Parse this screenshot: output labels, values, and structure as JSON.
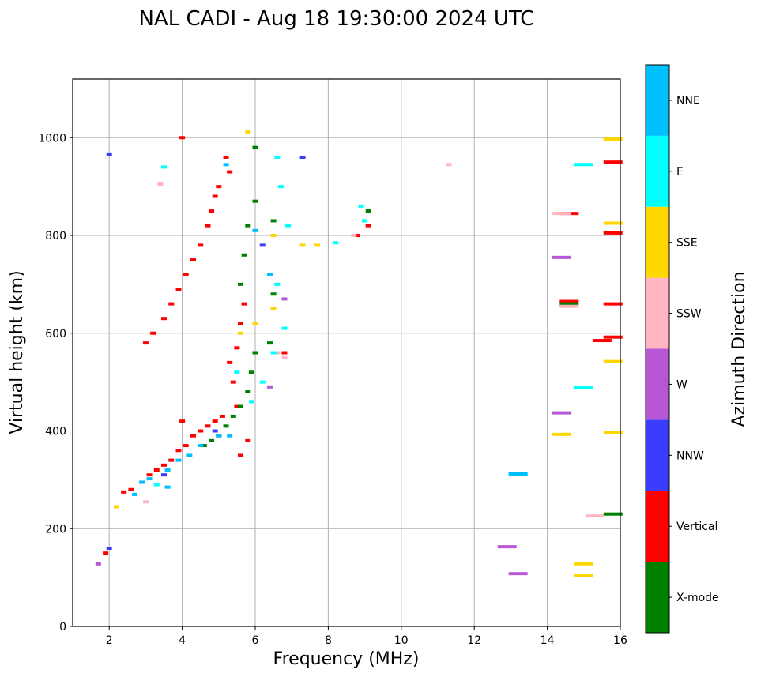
{
  "chart_data": {
    "type": "scatter",
    "title": "NAL CADI - Aug 18 19:30:00 2024 UTC",
    "xlabel": "Frequency (MHz)",
    "ylabel": "Virtual height (km)",
    "xlim": [
      1,
      16
    ],
    "ylim": [
      0,
      1120
    ],
    "xticks": [
      2,
      4,
      6,
      8,
      10,
      12,
      14,
      16
    ],
    "yticks": [
      0,
      200,
      400,
      600,
      800,
      1000
    ],
    "grid": true,
    "colorbar": {
      "label": "Azimuth Direction",
      "categories": [
        {
          "name": "X-mode",
          "color": "#008000"
        },
        {
          "name": "Vertical",
          "color": "#ff0000"
        },
        {
          "name": "NNW",
          "color": "#3c3cff"
        },
        {
          "name": "W",
          "color": "#b857d6"
        },
        {
          "name": "SSW",
          "color": "#ffb6c1"
        },
        {
          "name": "SSE",
          "color": "#ffd700"
        },
        {
          "name": "E",
          "color": "#00ffff"
        },
        {
          "name": "NNE",
          "color": "#00bfff"
        }
      ]
    },
    "series": [
      {
        "name": "Vertical",
        "points": [
          [
            1.9,
            150
          ],
          [
            2.4,
            275
          ],
          [
            2.6,
            280
          ],
          [
            2.9,
            295
          ],
          [
            3.1,
            310
          ],
          [
            3.3,
            320
          ],
          [
            3.5,
            330
          ],
          [
            3.7,
            340
          ],
          [
            3.9,
            360
          ],
          [
            4.1,
            370
          ],
          [
            4.3,
            390
          ],
          [
            4.5,
            400
          ],
          [
            4.7,
            410
          ],
          [
            4.9,
            420
          ],
          [
            5.1,
            430
          ],
          [
            3.0,
            580
          ],
          [
            3.2,
            600
          ],
          [
            3.5,
            630
          ],
          [
            3.7,
            660
          ],
          [
            3.9,
            690
          ],
          [
            4.1,
            720
          ],
          [
            4.3,
            750
          ],
          [
            4.5,
            780
          ],
          [
            4.7,
            820
          ],
          [
            4.8,
            850
          ],
          [
            4.9,
            880
          ],
          [
            5.0,
            900
          ],
          [
            5.3,
            930
          ],
          [
            5.2,
            960
          ],
          [
            4.0,
            1000
          ],
          [
            5.6,
            350
          ],
          [
            5.8,
            380
          ],
          [
            5.5,
            450
          ],
          [
            5.4,
            500
          ],
          [
            5.3,
            540
          ],
          [
            5.5,
            570
          ],
          [
            5.6,
            620
          ],
          [
            5.7,
            660
          ],
          [
            6.8,
            560
          ],
          [
            8.8,
            800
          ],
          [
            9.1,
            820
          ],
          [
            15.8,
            950
          ],
          [
            14.6,
            845
          ],
          [
            15.8,
            805
          ],
          [
            15.8,
            660
          ],
          [
            15.5,
            585
          ],
          [
            15.8,
            592
          ],
          [
            14.6,
            665
          ],
          [
            4.0,
            420
          ]
        ]
      },
      {
        "name": "X-mode",
        "points": [
          [
            4.6,
            370
          ],
          [
            4.8,
            380
          ],
          [
            5.0,
            390
          ],
          [
            5.2,
            410
          ],
          [
            5.4,
            430
          ],
          [
            5.6,
            450
          ],
          [
            5.8,
            480
          ],
          [
            5.9,
            520
          ],
          [
            6.0,
            560
          ],
          [
            5.6,
            700
          ],
          [
            5.7,
            760
          ],
          [
            5.8,
            820
          ],
          [
            6.0,
            870
          ],
          [
            6.5,
            830
          ],
          [
            6.5,
            680
          ],
          [
            6.4,
            580
          ],
          [
            6.0,
            980
          ],
          [
            14.6,
            660
          ],
          [
            15.8,
            230
          ],
          [
            9.1,
            850
          ]
        ]
      },
      {
        "name": "NNW",
        "points": [
          [
            2.0,
            965
          ],
          [
            7.3,
            960
          ],
          [
            6.2,
            780
          ],
          [
            4.9,
            400
          ],
          [
            3.5,
            310
          ],
          [
            2.0,
            160
          ]
        ]
      },
      {
        "name": "W",
        "points": [
          [
            14.4,
            755
          ],
          [
            14.4,
            437
          ],
          [
            12.9,
            163
          ],
          [
            13.2,
            108
          ],
          [
            6.4,
            490
          ],
          [
            6.8,
            670
          ],
          [
            1.7,
            128
          ]
        ]
      },
      {
        "name": "SSW",
        "points": [
          [
            14.4,
            845
          ],
          [
            11.3,
            945
          ],
          [
            6.6,
            560
          ],
          [
            6.8,
            550
          ],
          [
            8.7,
            800
          ],
          [
            3.4,
            905
          ],
          [
            3.0,
            255
          ],
          [
            15.3,
            226
          ],
          [
            14.6,
            655
          ]
        ]
      },
      {
        "name": "SSE",
        "points": [
          [
            7.3,
            780
          ],
          [
            7.7,
            780
          ],
          [
            5.8,
            1012
          ],
          [
            6.5,
            800
          ],
          [
            6.5,
            650
          ],
          [
            6.0,
            620
          ],
          [
            15.8,
            997
          ],
          [
            15.8,
            825
          ],
          [
            15.8,
            542
          ],
          [
            15.8,
            396
          ],
          [
            14.4,
            393
          ],
          [
            15.0,
            128
          ],
          [
            15.0,
            104
          ],
          [
            2.2,
            245
          ],
          [
            5.6,
            600
          ]
        ]
      },
      {
        "name": "E",
        "points": [
          [
            15.0,
            945
          ],
          [
            15.0,
            488
          ],
          [
            6.6,
            960
          ],
          [
            6.7,
            900
          ],
          [
            6.9,
            820
          ],
          [
            6.6,
            700
          ],
          [
            6.8,
            610
          ],
          [
            6.5,
            560
          ],
          [
            6.2,
            500
          ],
          [
            5.9,
            460
          ],
          [
            5.5,
            520
          ],
          [
            9.0,
            830
          ],
          [
            8.9,
            860
          ],
          [
            8.2,
            785
          ],
          [
            3.5,
            940
          ],
          [
            13.2,
            312
          ],
          [
            3.3,
            290
          ]
        ]
      },
      {
        "name": "NNE",
        "points": [
          [
            2.9,
            295
          ],
          [
            3.1,
            302
          ],
          [
            3.6,
            320
          ],
          [
            3.9,
            340
          ],
          [
            4.2,
            350
          ],
          [
            4.5,
            370
          ],
          [
            5.0,
            390
          ],
          [
            5.3,
            390
          ],
          [
            6.0,
            810
          ],
          [
            5.2,
            945
          ],
          [
            6.4,
            720
          ],
          [
            3.6,
            285
          ],
          [
            13.2,
            312
          ],
          [
            2.7,
            270
          ]
        ]
      }
    ]
  }
}
